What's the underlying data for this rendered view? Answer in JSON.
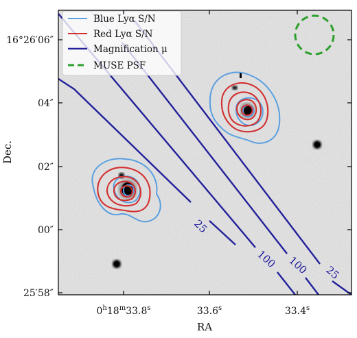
{
  "chart_data": {
    "type": "contour-map",
    "xlabel": "RA",
    "ylabel": "Dec.",
    "x_ticks": [
      {
        "h": "0",
        "m": "18",
        "s": "33.8",
        "value_s": 33.8
      },
      {
        "s": "33.6",
        "value_s": 33.6
      },
      {
        "s": "33.4",
        "value_s": 33.4
      }
    ],
    "y_ticks": [
      {
        "label": "16°26′06″",
        "value_arcsec": 6
      },
      {
        "label": "04″",
        "value_arcsec": 4
      },
      {
        "label": "02″",
        "value_arcsec": 2
      },
      {
        "label": "00″",
        "value_arcsec": 0
      },
      {
        "label": "25′58″",
        "value_arcsec": -2
      }
    ],
    "xlim_s": [
      33.87,
      33.22
    ],
    "ylim_arcsec": [
      -2.3,
      7.1
    ],
    "legend_position": "top-left",
    "legend": [
      {
        "label": "Blue Lyα S/N",
        "color": "#5a9fe0",
        "style": "solid"
      },
      {
        "label": "Red Lyα S/N",
        "color": "#d32f2f",
        "style": "solid"
      },
      {
        "label": "Magnification μ",
        "color": "#23209a",
        "style": "solid"
      },
      {
        "label": "MUSE PSF",
        "color": "#2ca02c",
        "style": "dashed"
      }
    ],
    "magnification_labels": [
      "25",
      "100",
      "100",
      "25"
    ],
    "colors": {
      "blue": "#5a9fe0",
      "red": "#d32f2f",
      "mu": "#23209a",
      "psf": "#2ca02c"
    }
  }
}
